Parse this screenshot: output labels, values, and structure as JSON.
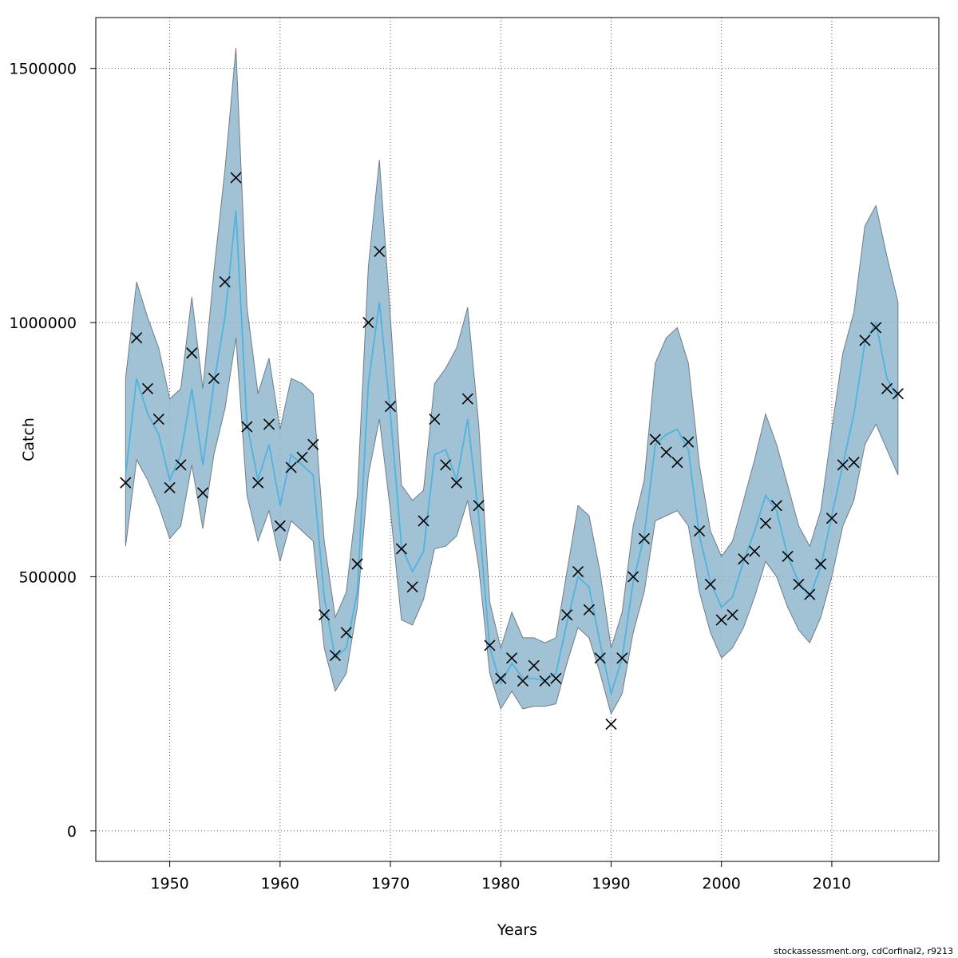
{
  "chart_data": {
    "type": "line",
    "xlabel": "Years",
    "ylabel": "Catch",
    "xlim": [
      1943.3,
      2019.7
    ],
    "ylim": [
      -60000,
      1600000
    ],
    "x_ticks": [
      1950,
      1960,
      1970,
      1980,
      1990,
      2000,
      2010
    ],
    "x_tick_labels": [
      "1950",
      "1960",
      "1970",
      "1980",
      "1990",
      "2000",
      "2010"
    ],
    "y_ticks": [
      0,
      500000,
      1000000,
      1500000
    ],
    "y_tick_labels": [
      "0",
      "500000",
      "1000000",
      "1500000"
    ],
    "grid": true,
    "colors": {
      "band": "#8fb7cc",
      "band_edge": "#6f7d86",
      "line": "#4fb3df",
      "marker": "#000000"
    },
    "x": [
      1946,
      1947,
      1948,
      1949,
      1950,
      1951,
      1952,
      1953,
      1954,
      1955,
      1956,
      1957,
      1958,
      1959,
      1960,
      1961,
      1962,
      1963,
      1964,
      1965,
      1966,
      1967,
      1968,
      1969,
      1970,
      1971,
      1972,
      1973,
      1974,
      1975,
      1976,
      1977,
      1978,
      1979,
      1980,
      1981,
      1982,
      1983,
      1984,
      1985,
      1986,
      1987,
      1988,
      1989,
      1990,
      1991,
      1992,
      1993,
      1994,
      1995,
      1996,
      1997,
      1998,
      1999,
      2000,
      2001,
      2002,
      2003,
      2004,
      2005,
      2006,
      2007,
      2008,
      2009,
      2010,
      2011,
      2012,
      2013,
      2014,
      2015,
      2016
    ],
    "series": [
      {
        "role": "observed",
        "style": "x-markers",
        "values": [
          685000,
          970000,
          870000,
          810000,
          675000,
          720000,
          940000,
          665000,
          890000,
          1080000,
          1285000,
          795000,
          685000,
          800000,
          600000,
          715000,
          735000,
          760000,
          425000,
          345000,
          390000,
          525000,
          1000000,
          1140000,
          835000,
          555000,
          480000,
          610000,
          810000,
          720000,
          685000,
          850000,
          640000,
          365000,
          300000,
          340000,
          295000,
          325000,
          295000,
          300000,
          425000,
          510000,
          435000,
          340000,
          210000,
          340000,
          500000,
          575000,
          770000,
          745000,
          725000,
          765000,
          590000,
          485000,
          415000,
          425000,
          535000,
          550000,
          605000,
          640000,
          540000,
          485000,
          465000,
          525000,
          615000,
          720000,
          725000,
          965000,
          990000,
          870000,
          860000
        ]
      },
      {
        "role": "estimate",
        "style": "line",
        "values": [
          700000,
          890000,
          820000,
          780000,
          690000,
          740000,
          870000,
          720000,
          880000,
          1010000,
          1220000,
          800000,
          690000,
          760000,
          640000,
          740000,
          720000,
          700000,
          460000,
          340000,
          360000,
          470000,
          880000,
          1040000,
          820000,
          560000,
          510000,
          550000,
          740000,
          750000,
          690000,
          810000,
          620000,
          360000,
          290000,
          330000,
          300000,
          300000,
          295000,
          310000,
          410000,
          500000,
          480000,
          370000,
          270000,
          340000,
          490000,
          580000,
          760000,
          780000,
          790000,
          750000,
          580000,
          490000,
          440000,
          460000,
          530000,
          590000,
          660000,
          630000,
          540000,
          490000,
          460000,
          520000,
          620000,
          720000,
          820000,
          960000,
          1000000,
          890000,
          850000
        ]
      },
      {
        "role": "upper",
        "style": "band",
        "values": [
          890000,
          1080000,
          1010000,
          950000,
          850000,
          870000,
          1050000,
          870000,
          1100000,
          1300000,
          1540000,
          1030000,
          860000,
          930000,
          790000,
          890000,
          880000,
          860000,
          570000,
          420000,
          470000,
          660000,
          1110000,
          1320000,
          1010000,
          680000,
          650000,
          670000,
          880000,
          910000,
          950000,
          1030000,
          800000,
          450000,
          360000,
          430000,
          380000,
          380000,
          370000,
          380000,
          510000,
          640000,
          620000,
          510000,
          360000,
          430000,
          600000,
          690000,
          920000,
          970000,
          990000,
          920000,
          720000,
          590000,
          540000,
          570000,
          650000,
          730000,
          820000,
          760000,
          680000,
          600000,
          560000,
          630000,
          790000,
          940000,
          1020000,
          1190000,
          1230000,
          1130000,
          1040000
        ]
      },
      {
        "role": "lower",
        "style": "band",
        "values": [
          560000,
          730000,
          690000,
          640000,
          575000,
          600000,
          720000,
          595000,
          740000,
          830000,
          970000,
          660000,
          570000,
          630000,
          530000,
          610000,
          590000,
          570000,
          360000,
          275000,
          310000,
          440000,
          700000,
          810000,
          630000,
          415000,
          405000,
          455000,
          555000,
          560000,
          580000,
          650000,
          520000,
          310000,
          240000,
          275000,
          240000,
          245000,
          245000,
          250000,
          330000,
          400000,
          380000,
          310000,
          230000,
          270000,
          390000,
          470000,
          610000,
          620000,
          630000,
          600000,
          470000,
          390000,
          340000,
          360000,
          400000,
          460000,
          530000,
          500000,
          440000,
          395000,
          370000,
          420000,
          500000,
          600000,
          650000,
          760000,
          800000,
          750000,
          700000
        ]
      }
    ]
  },
  "footer": {
    "credit": "stockassessment.org, cdCorfinal2, r9213"
  }
}
